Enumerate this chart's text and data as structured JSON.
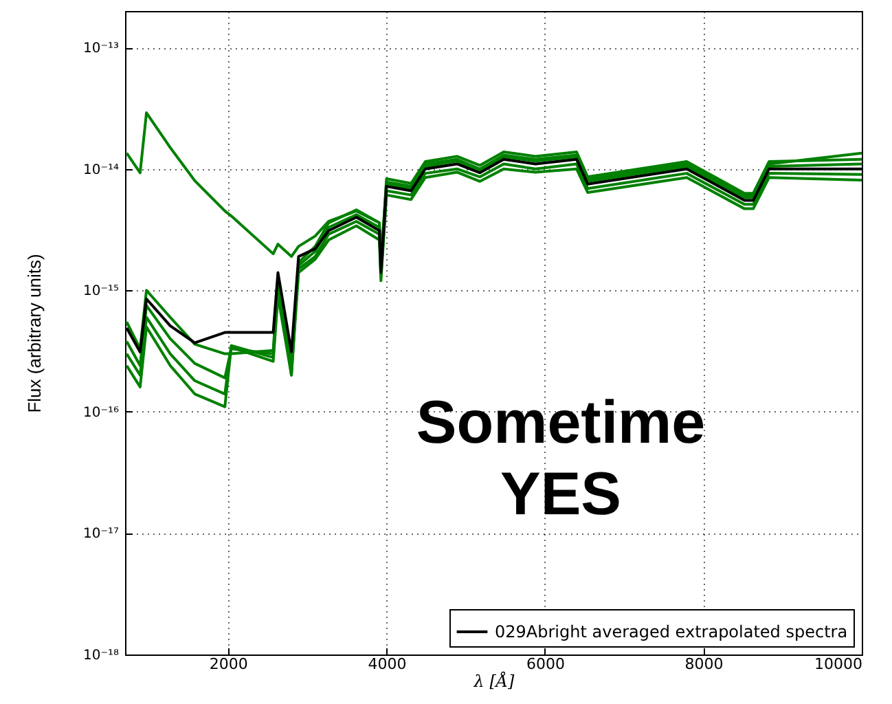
{
  "chart_data": {
    "type": "line",
    "xlabel": "λ [Å]",
    "ylabel": "Flux (arbitrary units)",
    "log": "y",
    "grid": true,
    "legend": "bottom right",
    "xlim": [
      700,
      10000
    ],
    "xticks": [
      2000,
      4000,
      6000,
      8000,
      10000
    ],
    "ylim": [
      1e-18,
      2e-13
    ],
    "yticks": [
      {
        "value": 1e-18,
        "label": "10⁻¹⁸"
      },
      {
        "value": 1e-17,
        "label": "10⁻¹⁷"
      },
      {
        "value": 1e-16,
        "label": "10⁻¹⁶"
      },
      {
        "value": 1e-15,
        "label": "10⁻¹⁵"
      },
      {
        "value": 1e-14,
        "label": "10⁻¹⁴"
      },
      {
        "value": 1e-13,
        "label": "10⁻¹³"
      }
    ],
    "x": [
      720,
      890,
      970,
      1270,
      1580,
      1960,
      2040,
      2570,
      2630,
      2800,
      2890,
      3100,
      3270,
      3620,
      3910,
      3930,
      4000,
      4310,
      4490,
      4890,
      5180,
      5480,
      5880,
      6400,
      6540,
      7790,
      8520,
      8630,
      8830,
      10000
    ],
    "series": [
      {
        "color": "#008000",
        "values": [
          1.35e-14,
          9.3e-15,
          2.9e-14,
          1.5e-14,
          8e-15,
          4.5e-15,
          4.1e-15,
          2e-15,
          2.4e-15,
          1.9e-15,
          2.3e-15,
          2.8e-15,
          3.7e-15,
          4.5e-15,
          3.6e-15,
          1.6e-15,
          7.8e-15,
          7.2e-15,
          1.1e-14,
          1.2e-14,
          1e-14,
          1.3e-14,
          1.2e-14,
          1.3e-14,
          8.2e-15,
          1.1e-14,
          6e-15,
          6e-15,
          1.1e-14,
          1.35e-14
        ]
      },
      {
        "color": "#008000",
        "values": [
          5.5e-16,
          3.3e-16,
          1e-15,
          6e-16,
          3.6e-16,
          3e-16,
          3e-16,
          3.2e-16,
          1.2e-15,
          2e-16,
          1.7e-15,
          2.3e-15,
          3.6e-15,
          4.6e-15,
          3.6e-15,
          1.6e-15,
          8.3e-15,
          7.6e-15,
          1.15e-14,
          1.27e-14,
          1.07e-14,
          1.38e-14,
          1.27e-14,
          1.38e-14,
          8.6e-15,
          1.15e-14,
          6.3e-15,
          6.3e-15,
          1.15e-14,
          1.2e-14
        ]
      },
      {
        "color": "#008000",
        "values": [
          3.8e-16,
          2.4e-16,
          7.5e-16,
          4e-16,
          2.5e-16,
          1.9e-16,
          3.3e-16,
          3e-16,
          1.1e-15,
          2.4e-16,
          1.6e-15,
          2.1e-15,
          3.3e-15,
          4.2e-15,
          3.3e-15,
          1.5e-15,
          7.6e-15,
          6.9e-15,
          1.05e-14,
          1.16e-14,
          9.8e-15,
          1.26e-14,
          1.16e-14,
          1.26e-14,
          7.9e-15,
          1.05e-14,
          5.8e-15,
          5.8e-15,
          1.05e-14,
          1.1e-14
        ]
      },
      {
        "color": "#008000",
        "values": [
          3e-16,
          2e-16,
          6e-16,
          3e-16,
          1.8e-16,
          1.4e-16,
          3.5e-16,
          2.8e-16,
          1e-15,
          2.2e-16,
          1.5e-15,
          1.9e-15,
          2.9e-15,
          3.7e-15,
          2.9e-15,
          1.3e-15,
          6.6e-15,
          6.1e-15,
          9.2e-15,
          1e-14,
          8.6e-15,
          1.1e-14,
          1e-14,
          1.1e-14,
          6.9e-15,
          9.2e-15,
          5.1e-15,
          5.1e-15,
          9.2e-15,
          9e-15
        ]
      },
      {
        "color": "#008000",
        "values": [
          2.4e-16,
          1.6e-16,
          5e-16,
          2.4e-16,
          1.4e-16,
          1.1e-16,
          3.4e-16,
          2.6e-16,
          9e-16,
          2e-16,
          1.4e-15,
          1.8e-15,
          2.6e-15,
          3.4e-15,
          2.6e-15,
          1.2e-15,
          6.1e-15,
          5.6e-15,
          8.5e-15,
          9.4e-15,
          7.9e-15,
          1e-14,
          9.4e-15,
          1e-14,
          6.4e-15,
          8.5e-15,
          4.7e-15,
          4.7e-15,
          8.5e-15,
          8.1e-15
        ]
      },
      {
        "name": "029Abright averaged extrapolated spectra",
        "color": "#000000",
        "values": [
          4.9e-16,
          3.1e-16,
          8.5e-16,
          5.1e-16,
          3.7e-16,
          4.5e-16,
          4.5e-16,
          4.5e-16,
          1.4e-15,
          3.1e-16,
          1.9e-15,
          2.2e-15,
          3.1e-15,
          4e-15,
          3.1e-15,
          1.4e-15,
          7.2e-15,
          6.6e-15,
          1e-14,
          1.1e-14,
          9.3e-15,
          1.2e-14,
          1.1e-14,
          1.2e-14,
          7.5e-15,
          1e-14,
          5.5e-15,
          5.5e-15,
          1e-14,
          1e-14
        ]
      }
    ],
    "annotations": [
      "Sometime YES"
    ]
  }
}
